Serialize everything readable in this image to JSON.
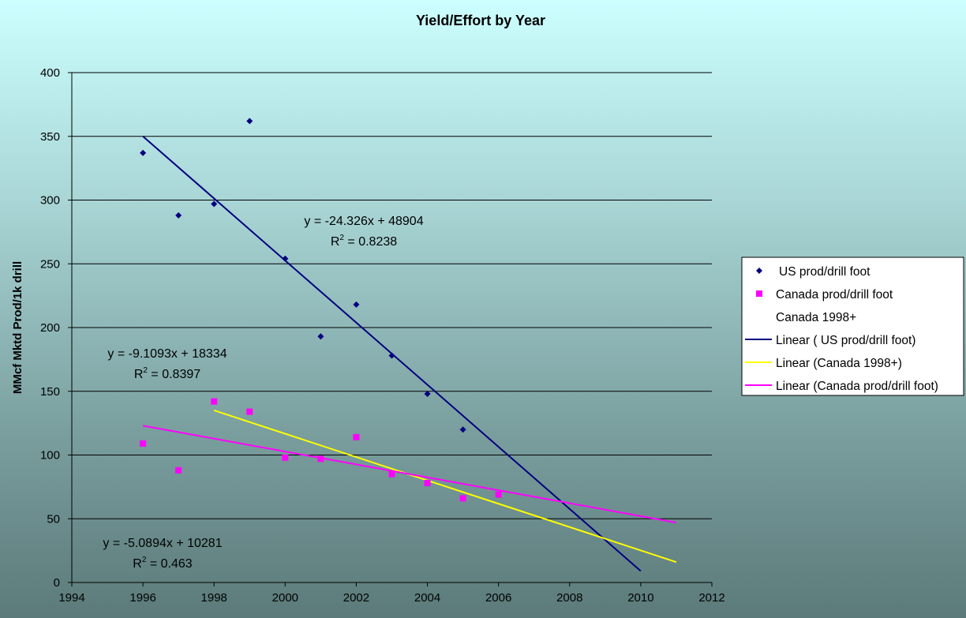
{
  "chart_data": {
    "type": "scatter",
    "title": "Yield/Effort by Year",
    "ylabel": "MMcf Mktd Prod/1k drill",
    "xlim": [
      1994,
      2012
    ],
    "ylim": [
      0,
      400
    ],
    "xticks": [
      "1994",
      "1996",
      "1998",
      "2000",
      "2002",
      "2004",
      "2006",
      "2008",
      "2010",
      "2012"
    ],
    "yticks": [
      "0",
      "50",
      "100",
      "150",
      "200",
      "250",
      "300",
      "350",
      "400"
    ],
    "grid": "horizontal",
    "legend_position": "right",
    "series": [
      {
        "name": "US prod/drill foot",
        "marker": "diamond",
        "color": "#00007f",
        "x": [
          1996,
          1997,
          1998,
          1999,
          2000,
          2001,
          2002,
          2003,
          2004,
          2005
        ],
        "y": [
          337,
          288,
          297,
          362,
          254,
          193,
          218,
          178,
          148,
          120
        ]
      },
      {
        "name": "Canada prod/drill foot",
        "marker": "square",
        "color": "#ff00ff",
        "x": [
          1996,
          1997,
          1998,
          1999,
          2000,
          2001,
          2002,
          2003,
          2004,
          2005,
          2006
        ],
        "y": [
          109,
          88,
          142,
          134,
          98,
          97,
          114,
          85,
          78,
          66,
          69
        ]
      },
      {
        "name": "Canada 1998+",
        "marker": "none",
        "color": "none",
        "x": [],
        "y": []
      }
    ],
    "trendlines": [
      {
        "name": "Linear ( US prod/drill foot)",
        "color": "#00007f",
        "x": [
          1996,
          2010
        ],
        "y": [
          350,
          9
        ],
        "equation": "y = -24.326x + 48904",
        "r2_label": "R",
        "r2_value": " = 0.8238"
      },
      {
        "name": "Linear (Canada 1998+)",
        "color": "#ffff00",
        "x": [
          1998,
          2011
        ],
        "y": [
          135,
          16
        ],
        "equation": "y = -9.1093x + 18334",
        "r2_label": "R",
        "r2_value": " = 0.8397"
      },
      {
        "name": "Linear (Canada prod/drill foot)",
        "color": "#ff00ff",
        "x": [
          1996,
          2011
        ],
        "y": [
          123,
          47
        ],
        "equation": "y = -5.0894x + 10281",
        "r2_label": "R",
        "r2_value": " = 0.463"
      }
    ],
    "legend": [
      {
        "label": "US prod/drill foot",
        "kind": "diamond",
        "color": "#00007f"
      },
      {
        "label": "Canada prod/drill foot",
        "kind": "square",
        "color": "#ff00ff"
      },
      {
        "label": "Canada 1998+",
        "kind": "none",
        "color": "none"
      },
      {
        "label": "Linear ( US prod/drill foot)",
        "kind": "line",
        "color": "#00007f"
      },
      {
        "label": "Linear (Canada 1998+)",
        "kind": "line",
        "color": "#ffff00"
      },
      {
        "label": "Linear (Canada prod/drill foot)",
        "kind": "line",
        "color": "#ff00ff"
      }
    ]
  }
}
